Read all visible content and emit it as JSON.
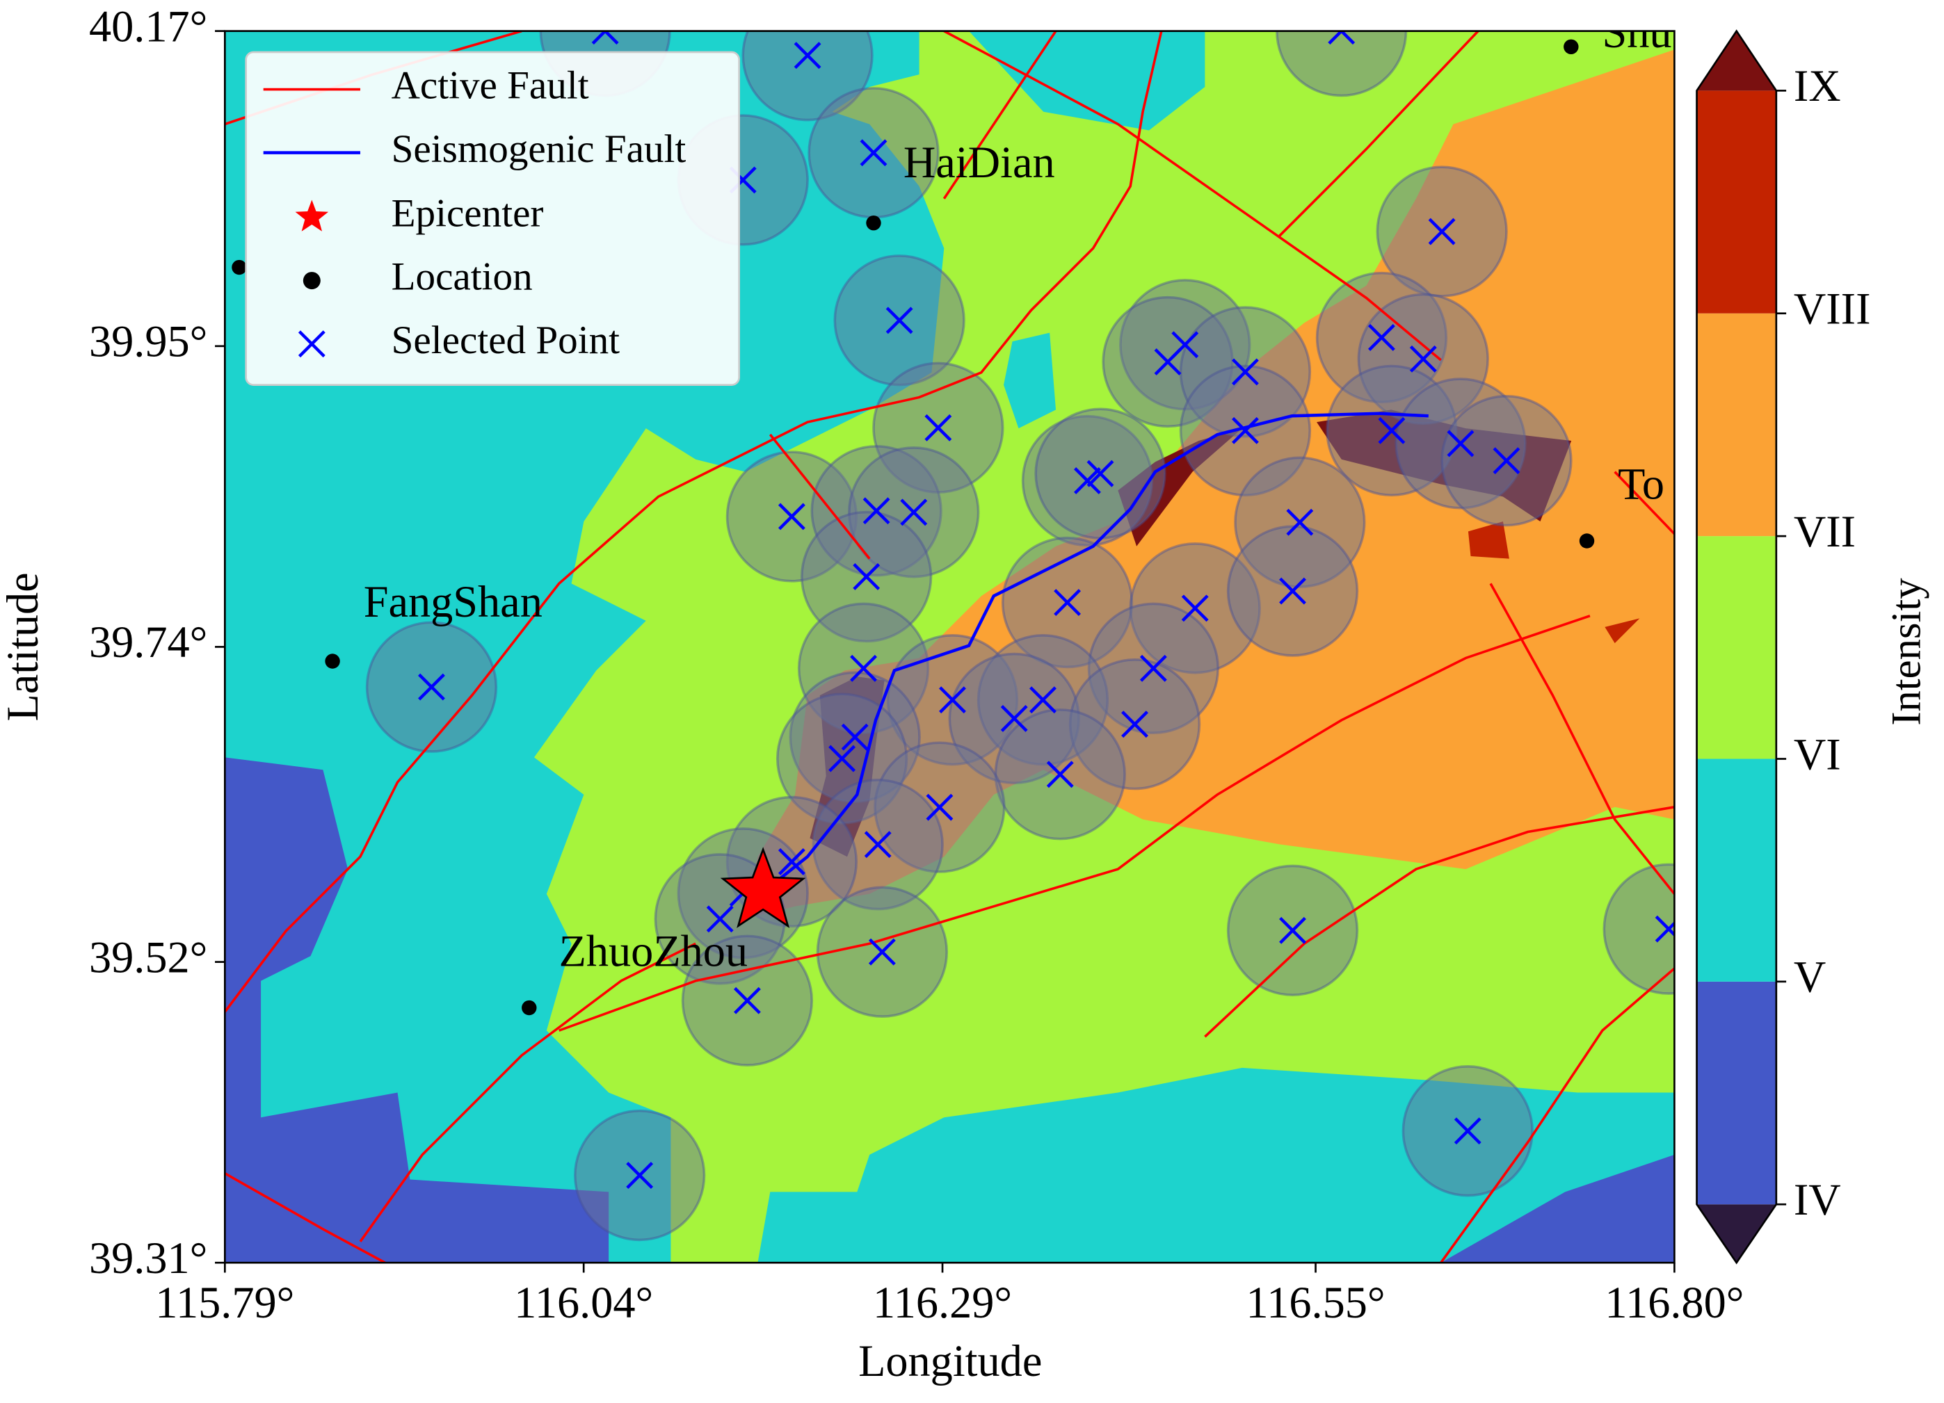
{
  "chart_data": {
    "type": "map",
    "xlabel": "Longitude",
    "ylabel": "Latitude",
    "xlim": [
      115.79,
      116.8
    ],
    "ylim": [
      39.31,
      40.17
    ],
    "xticks": [
      {
        "value": 115.79,
        "label": "115.79°"
      },
      {
        "value": 116.04,
        "label": "116.04°"
      },
      {
        "value": 116.29,
        "label": "116.29°"
      },
      {
        "value": 116.55,
        "label": "116.55°"
      },
      {
        "value": 116.8,
        "label": "116.80°"
      }
    ],
    "yticks": [
      {
        "value": 39.31,
        "label": "39.31°"
      },
      {
        "value": 39.52,
        "label": "39.52°"
      },
      {
        "value": 39.74,
        "label": "39.74°"
      },
      {
        "value": 39.95,
        "label": "39.95°"
      },
      {
        "value": 40.17,
        "label": "40.17°"
      }
    ],
    "faults": {
      "active": {
        "name": "Active Fault",
        "color": "#ff0000"
      },
      "seismogenic": {
        "name": "Seismogenic Fault",
        "color": "#0000ff"
      }
    },
    "epicenter": {
      "name": "Epicenter",
      "color": "#ff0000",
      "x": 116.165,
      "y": 39.569
    },
    "series": [
      {
        "name": "Location",
        "color": "#000000",
        "x": [
          116.728,
          116.242,
          115.8,
          115.865,
          116.739,
          116.002
        ],
        "y": [
          40.159,
          40.036,
          40.005,
          39.73,
          39.814,
          39.488
        ],
        "labels": [
          "Shu",
          "HaiDian",
          null,
          "FangShan",
          "To",
          "ZhuoZhou"
        ]
      },
      {
        "name": "Selected Point",
        "color": "#0000ff",
        "x": [
          116.055,
          116.196,
          116.242,
          116.151,
          116.26,
          116.638,
          116.459,
          116.447,
          116.501,
          116.596,
          116.625,
          116.287,
          116.603,
          116.501,
          116.651,
          116.683,
          116.391,
          116.4,
          116.185,
          116.244,
          116.27,
          116.539,
          116.237,
          116.377,
          116.466,
          116.534,
          116.235,
          116.437,
          116.297,
          116.36,
          116.34,
          116.424,
          116.229,
          116.22,
          116.372,
          116.288,
          116.245,
          116.185,
          116.151,
          116.135,
          116.534,
          116.796,
          116.248,
          116.154,
          116.656,
          116.079,
          115.934,
          116.568
        ],
        "y": [
          40.17,
          40.153,
          40.085,
          40.066,
          39.968,
          40.03,
          39.951,
          39.939,
          39.932,
          39.956,
          39.941,
          39.893,
          39.891,
          39.891,
          39.882,
          39.87,
          39.856,
          39.861,
          39.831,
          39.835,
          39.834,
          39.827,
          39.789,
          39.771,
          39.767,
          39.779,
          39.725,
          39.725,
          39.703,
          39.703,
          39.69,
          39.686,
          39.677,
          39.662,
          39.651,
          39.628,
          39.602,
          39.59,
          39.568,
          39.55,
          39.542,
          39.543,
          39.527,
          39.493,
          39.402,
          39.371,
          39.712,
          40.17
        ]
      }
    ],
    "colorbar": {
      "label": "Intensity",
      "labels": [
        "IV",
        "V",
        "VI",
        "VII",
        "VIII",
        "IX"
      ],
      "colors": [
        "#2c1a3d",
        "#4458c8",
        "#1dd3cd",
        "#a6f43c",
        "#fba234",
        "#c32300",
        "#7a1010"
      ]
    }
  }
}
